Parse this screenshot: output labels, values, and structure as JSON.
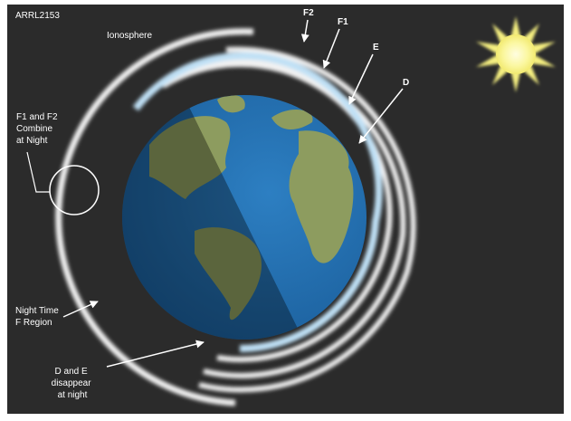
{
  "header": {
    "id": "ARRL2153",
    "title": "Ionosphere"
  },
  "layer_labels": [
    "F2",
    "F1",
    "E",
    "D"
  ],
  "annotations": [
    {
      "lines": [
        "F1 and F2",
        "Combine",
        "at Night"
      ]
    },
    {
      "lines": [
        "Night Time",
        "F Region"
      ]
    },
    {
      "lines": [
        "D and E",
        "disappear",
        "at night"
      ]
    }
  ]
}
